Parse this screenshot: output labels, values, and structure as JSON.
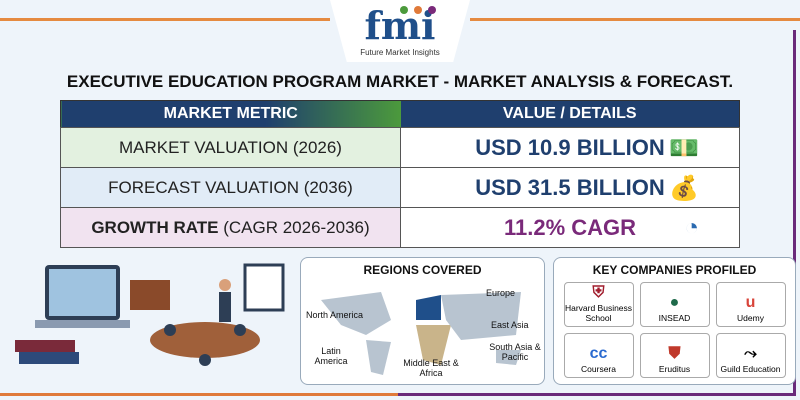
{
  "logo": {
    "text": "fmi",
    "tagline": "Future Market Insights",
    "dot_colors": [
      "#4c9a3c",
      "#e07a3a",
      "#7a2a7a"
    ]
  },
  "title": "EXECUTIVE EDUCATION PROGRAM MARKET - MARKET ANALYSIS & FORECAST.",
  "table": {
    "headers": [
      "MARKET METRIC",
      "VALUE / DETAILS"
    ],
    "rows": [
      {
        "metric": "MARKET VALUATION (2026)",
        "value": "USD 10.9 BILLION",
        "icon": "money-stack-icon"
      },
      {
        "metric": "FORECAST VALUATION (2036)",
        "value": "USD 31.5 BILLION",
        "icon": "money-growth-icon"
      },
      {
        "metric_bold": "GROWTH RATE",
        "metric": " (CAGR 2026-2036)",
        "value": "11.2% CAGR",
        "icon": "donut-chart-icon"
      }
    ]
  },
  "regions": {
    "title": "REGIONS COVERED",
    "items": [
      "North America",
      "Latin America",
      "Europe",
      "Middle East & Africa",
      "East Asia",
      "South Asia & Pacific"
    ]
  },
  "companies": {
    "title": "KEY COMPANIES PROFILED",
    "items": [
      "Harvard Business School",
      "INSEAD",
      "Udemy",
      "Coursera",
      "Eruditus",
      "Guild Education"
    ]
  },
  "colors": {
    "navy": "#1f3f6e",
    "green": "#4c9a3c",
    "purple": "#7a2a7a",
    "orange": "#e07a3a"
  }
}
